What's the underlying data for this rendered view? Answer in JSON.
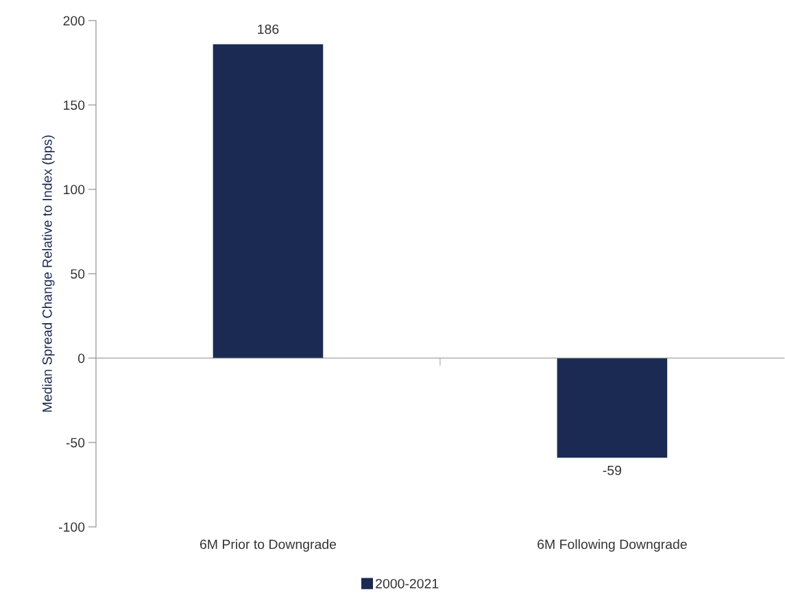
{
  "chart_data": {
    "type": "bar",
    "ylabel": "Median Spread Change Relative to Index (bps)",
    "categories": [
      "6M Prior to Downgrade",
      "6M Following Downgrade"
    ],
    "series": [
      {
        "name": "2000-2021",
        "color": "#1b2a52",
        "values": [
          186,
          -59
        ]
      }
    ],
    "ylim": [
      -100,
      200
    ],
    "yticks": [
      -100,
      -50,
      0,
      50,
      100,
      150,
      200
    ],
    "data_labels": true,
    "legend": "bottom"
  }
}
